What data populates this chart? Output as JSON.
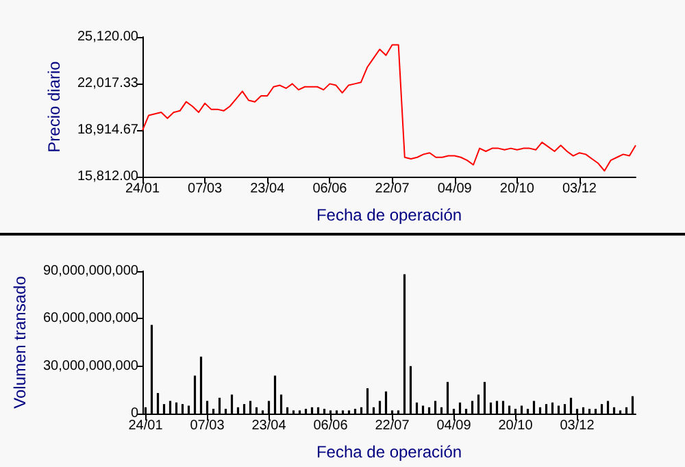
{
  "chart_data": [
    {
      "type": "line",
      "xlabel": "Fecha de operación",
      "ylabel": "Precio diario",
      "categories": [
        "24/01",
        null,
        null,
        null,
        null,
        null,
        null,
        null,
        null,
        null,
        "07/03",
        null,
        null,
        null,
        null,
        null,
        null,
        null,
        null,
        null,
        "23/04",
        null,
        null,
        null,
        null,
        null,
        null,
        null,
        null,
        null,
        "06/06",
        null,
        null,
        null,
        null,
        null,
        null,
        null,
        null,
        null,
        "22/07",
        null,
        null,
        null,
        null,
        null,
        null,
        null,
        null,
        null,
        "04/09",
        null,
        null,
        null,
        null,
        null,
        null,
        null,
        null,
        null,
        "20/10",
        null,
        null,
        null,
        null,
        null,
        null,
        null,
        null,
        null,
        "03/12",
        null,
        null,
        null,
        null,
        null,
        null,
        null,
        null,
        null
      ],
      "series": [
        {
          "color": "#ff0000",
          "values": [
            18900,
            19900,
            20000,
            20100,
            19700,
            20100,
            20200,
            20800,
            20500,
            20100,
            20700,
            20300,
            20300,
            20200,
            20500,
            21000,
            21500,
            20900,
            20800,
            21200,
            21200,
            21800,
            21900,
            21700,
            22000,
            21600,
            21800,
            21800,
            21800,
            21600,
            22000,
            21900,
            21400,
            21900,
            22000,
            22100,
            23100,
            23700,
            24300,
            23900,
            24600,
            24600,
            17100,
            17000,
            17100,
            17300,
            17400,
            17100,
            17100,
            17200,
            17200,
            17100,
            16900,
            16600,
            17700,
            17500,
            17700,
            17700,
            17600,
            17700,
            17600,
            17700,
            17700,
            17600,
            18100,
            17800,
            17500,
            17900,
            17500,
            17200,
            17400,
            17300,
            17000,
            16700,
            16200,
            16900,
            17100,
            17300,
            17200,
            17900
          ]
        }
      ],
      "ylim": [
        15812,
        25120
      ],
      "yticks": [
        {
          "value": 15812,
          "label": "15,812.00"
        },
        {
          "value": 18914.67,
          "label": "18,914.67"
        },
        {
          "value": 22017.33,
          "label": "22,017.33"
        },
        {
          "value": 25120,
          "label": "25,120.00"
        }
      ],
      "grid": false,
      "marker": "none",
      "line_style": "solid"
    },
    {
      "type": "bar",
      "xlabel": "Fecha de operación",
      "ylabel": "Volumen transado",
      "categories": [
        "24/01",
        null,
        null,
        null,
        null,
        null,
        null,
        null,
        null,
        null,
        "07/03",
        null,
        null,
        null,
        null,
        null,
        null,
        null,
        null,
        null,
        "23/04",
        null,
        null,
        null,
        null,
        null,
        null,
        null,
        null,
        null,
        "06/06",
        null,
        null,
        null,
        null,
        null,
        null,
        null,
        null,
        null,
        "22/07",
        null,
        null,
        null,
        null,
        null,
        null,
        null,
        null,
        null,
        "04/09",
        null,
        null,
        null,
        null,
        null,
        null,
        null,
        null,
        null,
        "20/10",
        null,
        null,
        null,
        null,
        null,
        null,
        null,
        null,
        null,
        "03/12",
        null,
        null,
        null,
        null,
        null,
        null,
        null,
        null,
        null
      ],
      "series": [
        {
          "color": "#000000",
          "values": [
            4000000000,
            56000000000,
            13000000000,
            6000000000,
            8000000000,
            7000000000,
            6000000000,
            5000000000,
            24000000000,
            36000000000,
            8000000000,
            3000000000,
            10000000000,
            3000000000,
            12000000000,
            4000000000,
            6000000000,
            8000000000,
            4000000000,
            2000000000,
            8000000000,
            24000000000,
            12000000000,
            4000000000,
            2000000000,
            2000000000,
            3000000000,
            4000000000,
            4000000000,
            3000000000,
            2000000000,
            2000000000,
            2000000000,
            2000000000,
            3000000000,
            4000000000,
            16000000000,
            4000000000,
            8000000000,
            14000000000,
            2000000000,
            2000000000,
            88000000000,
            30000000000,
            7000000000,
            5000000000,
            4000000000,
            8000000000,
            4000000000,
            20000000000,
            3000000000,
            7000000000,
            3000000000,
            8000000000,
            12000000000,
            20000000000,
            7000000000,
            8000000000,
            8000000000,
            5000000000,
            3000000000,
            5000000000,
            3000000000,
            8000000000,
            4000000000,
            6000000000,
            7000000000,
            5000000000,
            6000000000,
            10000000000,
            3000000000,
            4000000000,
            3000000000,
            3000000000,
            6000000000,
            8000000000,
            4000000000,
            2000000000,
            4000000000,
            11000000000
          ]
        }
      ],
      "ylim": [
        0,
        90000000000
      ],
      "yticks": [
        {
          "value": 0,
          "label": "0"
        },
        {
          "value": 30000000000,
          "label": "30,000,000,000"
        },
        {
          "value": 60000000000,
          "label": "60,000,000,000"
        },
        {
          "value": 90000000000,
          "label": "90,000,000,000"
        }
      ],
      "grid": false
    }
  ]
}
